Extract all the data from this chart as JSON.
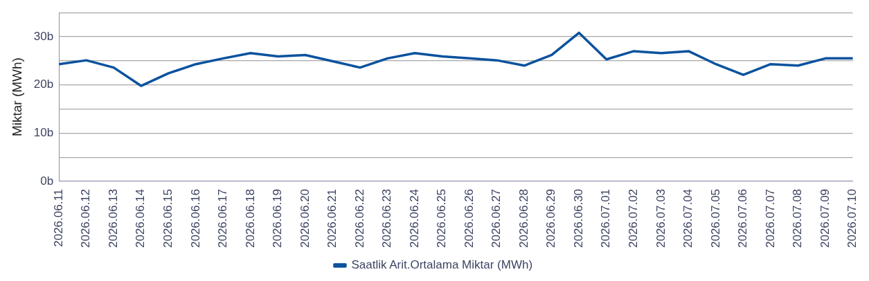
{
  "chart_data": {
    "type": "line",
    "ylabel": "Miktar (MWh)",
    "categories": [
      "2026.06.11",
      "2026.06.12",
      "2026.06.13",
      "2026.06.14",
      "2026.06.15",
      "2026.06.16",
      "2026.06.17",
      "2026.06.18",
      "2026.06.19",
      "2026.06.20",
      "2026.06.21",
      "2026.06.22",
      "2026.06.23",
      "2026.06.24",
      "2026.06.25",
      "2026.06.26",
      "2026.06.27",
      "2026.06.28",
      "2026.06.29",
      "2026.06.30",
      "2026.07.01",
      "2026.07.02",
      "2026.07.03",
      "2026.07.04",
      "2026.07.05",
      "2026.07.06",
      "2026.07.07",
      "2026.07.08",
      "2026.07.09",
      "2026.07.10"
    ],
    "series": [
      {
        "name": "Saatlik Arit.Ortalama Miktar (MWh)",
        "color": "#0a529e",
        "values": [
          24.3,
          25.1,
          23.6,
          19.8,
          22.4,
          24.3,
          25.5,
          26.6,
          25.9,
          26.2,
          24.9,
          23.6,
          25.5,
          26.6,
          25.9,
          25.5,
          25.1,
          24.0,
          26.2,
          30.8,
          25.3,
          27.0,
          26.6,
          27.0,
          24.3,
          22.1,
          24.3,
          24.0,
          25.5,
          25.5
        ]
      }
    ],
    "ylim": [
      0,
      35
    ],
    "yticks": [
      {
        "value": 0,
        "label": "0b"
      },
      {
        "value": 5,
        "label": null
      },
      {
        "value": 10,
        "label": "10b"
      },
      {
        "value": 15,
        "label": null
      },
      {
        "value": 20,
        "label": "20b"
      },
      {
        "value": 25,
        "label": null
      },
      {
        "value": 30,
        "label": "30b"
      },
      {
        "value": 35,
        "label": null
      }
    ],
    "grid": "y",
    "legend": "bottom",
    "marker": "none",
    "line_style": "solid"
  }
}
